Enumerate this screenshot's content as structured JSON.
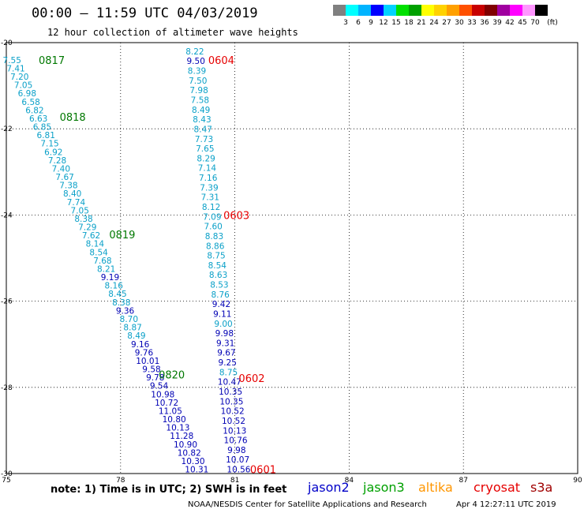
{
  "title": "00:00 – 11:59 UTC 04/03/2019",
  "subtitle": "12 hour collection of altimeter wave heights",
  "colorbar": {
    "unit": "(ft)",
    "labels": [
      "3",
      "6",
      "9",
      "12",
      "15",
      "18",
      "21",
      "24",
      "27",
      "30",
      "33",
      "36",
      "39",
      "42",
      "45",
      "70"
    ],
    "colors": [
      "#808080",
      "#00ffff",
      "#00b4ff",
      "#0000ff",
      "#00d2ff",
      "#00e000",
      "#00a000",
      "#ffff00",
      "#ffd200",
      "#ffa000",
      "#ff5000",
      "#c80000",
      "#800000",
      "#a000a0",
      "#ff00ff",
      "#ff96ff",
      "#000000"
    ]
  },
  "map": {
    "lon_ticks": [
      "75",
      "78",
      "81",
      "84",
      "87",
      "90"
    ],
    "lat_ticks": [
      "-20",
      "-22",
      "-24",
      "-26",
      "-28",
      "-30"
    ],
    "lon_range": [
      75,
      90
    ],
    "lat_range": [
      -20,
      -30
    ],
    "colors": {
      "cyan": "#0aa0c8",
      "navy": "#0000b4",
      "green": "#007800",
      "red": "#e60000"
    },
    "tracks": [
      {
        "start": [
          75.15,
          -20.4
        ],
        "end": [
          80.0,
          -29.9
        ],
        "values": [
          "7.55",
          "7.41",
          "7.20",
          "7.05",
          "6.98",
          "6.58",
          "6.82",
          "6.63",
          "6.85",
          "6.81",
          "7.15",
          "6.92",
          "7.28",
          "7.40",
          "7.67",
          "7.38",
          "8.40",
          "7.74",
          "7.05",
          "8.38",
          "7.29",
          "7.62",
          "8.14",
          "8.54",
          "7.68",
          "8.21",
          "9.19",
          "8.16",
          "8.45",
          "8.38",
          "9.36",
          "8.70",
          "8.87",
          "8.49",
          "9.16",
          "9.76",
          "10.01",
          "9.58",
          "9.78",
          "9.54",
          "10.98",
          "10.72",
          "11.05",
          "10.80",
          "10.13",
          "11.28",
          "10.90",
          "10.82",
          "10.30",
          "10.31"
        ],
        "colors": [
          "cyan",
          "cyan",
          "cyan",
          "cyan",
          "cyan",
          "cyan",
          "cyan",
          "cyan",
          "cyan",
          "cyan",
          "cyan",
          "cyan",
          "cyan",
          "cyan",
          "cyan",
          "cyan",
          "cyan",
          "cyan",
          "cyan",
          "cyan",
          "cyan",
          "cyan",
          "cyan",
          "cyan",
          "cyan",
          "cyan",
          "navy",
          "cyan",
          "cyan",
          "cyan",
          "navy",
          "cyan",
          "cyan",
          "cyan",
          "navy",
          "navy",
          "navy",
          "navy",
          "navy",
          "navy",
          "navy",
          "navy",
          "navy",
          "navy",
          "navy",
          "navy",
          "navy",
          "navy",
          "navy",
          "navy"
        ]
      },
      {
        "start": [
          79.95,
          -20.2
        ],
        "end": [
          81.1,
          -29.9
        ],
        "values": [
          "8.22",
          "9.50",
          "8.39",
          "7.50",
          "7.98",
          "7.58",
          "8.49",
          "8.43",
          "8.47",
          "7.73",
          "7.65",
          "8.29",
          "7.14",
          "7.16",
          "7.39",
          "7.31",
          "8.12",
          "7.09",
          "7.60",
          "8.83",
          "8.86",
          "8.75",
          "8.54",
          "8.63",
          "8.53",
          "8.76",
          "9.42",
          "9.11",
          "9.00",
          "9.98",
          "9.31",
          "9.67",
          "9.25",
          "8.75",
          "10.47",
          "10.35",
          "10.35",
          "10.52",
          "10.52",
          "10.13",
          "10.76",
          "9.98",
          "10.07",
          "10.56"
        ],
        "colors": [
          "cyan",
          "navy",
          "cyan",
          "cyan",
          "cyan",
          "cyan",
          "cyan",
          "cyan",
          "cyan",
          "cyan",
          "cyan",
          "cyan",
          "cyan",
          "cyan",
          "cyan",
          "cyan",
          "cyan",
          "cyan",
          "cyan",
          "cyan",
          "cyan",
          "cyan",
          "cyan",
          "cyan",
          "cyan",
          "cyan",
          "navy",
          "navy",
          "cyan",
          "navy",
          "navy",
          "navy",
          "navy",
          "cyan",
          "navy",
          "navy",
          "navy",
          "navy",
          "navy",
          "navy",
          "navy",
          "navy",
          "navy",
          "navy"
        ]
      }
    ],
    "time_labels": [
      {
        "text": "0817",
        "lon": 75.85,
        "lat": -20.4,
        "color": "green"
      },
      {
        "text": "0818",
        "lon": 76.4,
        "lat": -21.72,
        "color": "green"
      },
      {
        "text": "0819",
        "lon": 77.7,
        "lat": -24.45,
        "color": "green"
      },
      {
        "text": "0820",
        "lon": 79.0,
        "lat": -27.7,
        "color": "green"
      },
      {
        "text": "0604",
        "lon": 80.3,
        "lat": -20.4,
        "color": "red"
      },
      {
        "text": "0603",
        "lon": 80.7,
        "lat": -24.0,
        "color": "red"
      },
      {
        "text": "0602",
        "lon": 81.1,
        "lat": -27.78,
        "color": "red"
      },
      {
        "text": "0601",
        "lon": 81.4,
        "lat": -29.9,
        "color": "red"
      }
    ]
  },
  "note": "note:  1) Time is in UTC;  2) SWH is in feet",
  "satellites": [
    {
      "name": "jason2",
      "color": "#0000c8"
    },
    {
      "name": "jason3",
      "color": "#00a000"
    },
    {
      "name": "altika",
      "color": "#ff9600"
    },
    {
      "name": "cryosat",
      "color": "#e60000"
    },
    {
      "name": "s3a",
      "color": "#a00000"
    }
  ],
  "footer": "NOAA/NESDIS Center for Satellite Applications and Research",
  "footer_time": "Apr  4 12:27:11 UTC 2019"
}
